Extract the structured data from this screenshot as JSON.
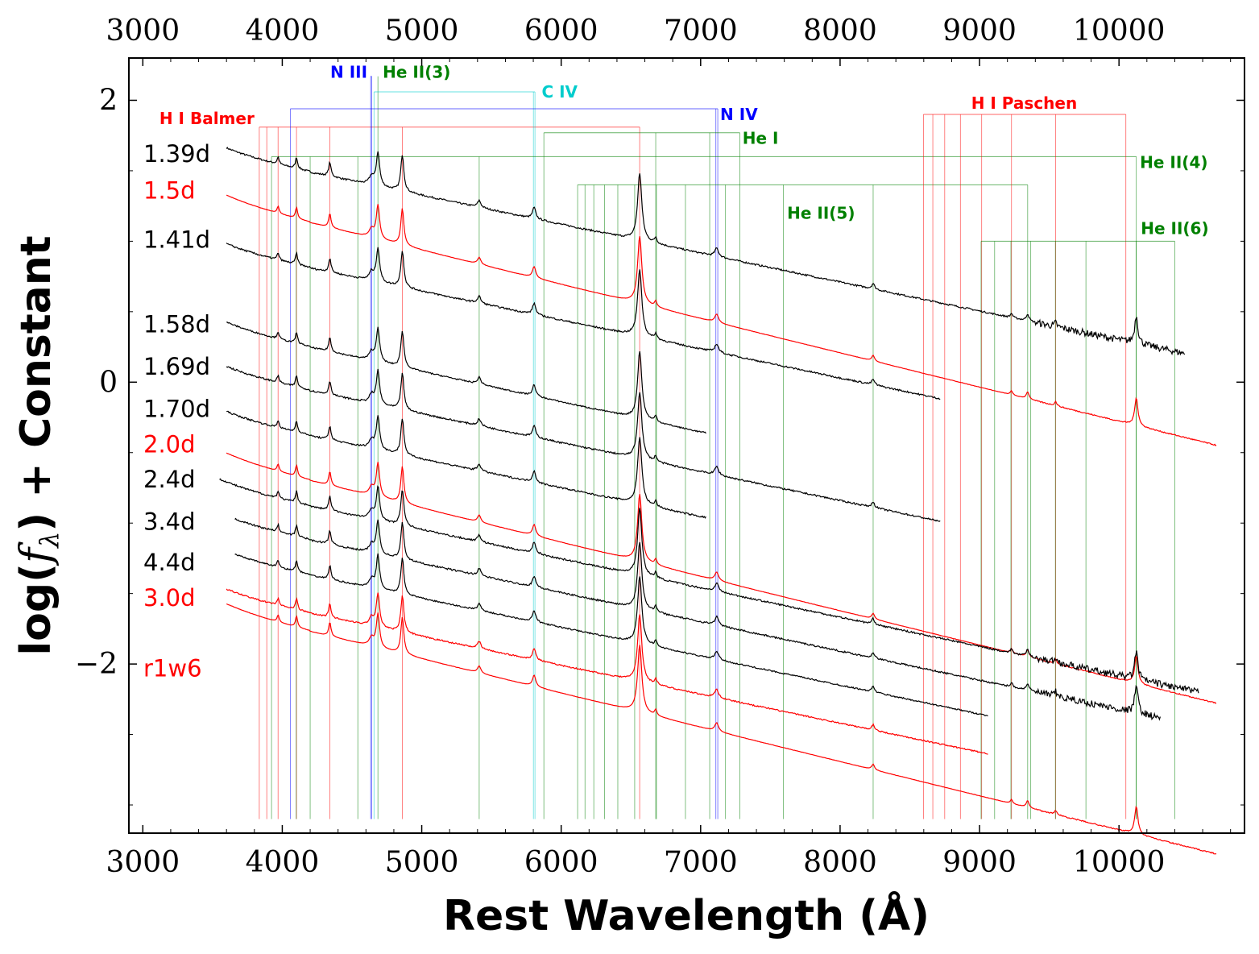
{
  "chart_data": {
    "type": "line",
    "title": "",
    "xlabel": "Rest Wavelength (Å)",
    "ylabel_prefix": "log(",
    "ylabel_symbol": "f",
    "ylabel_subscript": "λ",
    "ylabel_suffix": ") + Constant",
    "xlim": [
      2900,
      10900
    ],
    "ylim": [
      -3.2,
      2.3
    ],
    "xticks": [
      3000,
      4000,
      5000,
      6000,
      7000,
      8000,
      9000,
      10000
    ],
    "yticks": [
      -2,
      0,
      2
    ],
    "ytick_labels": [
      "−2",
      "0",
      "2"
    ],
    "grid": false,
    "colors": {
      "black": "#000000",
      "red": "#ff0000",
      "h": "#ff0000",
      "heI": "#008000",
      "heII": "#008000",
      "nIII": "#0000ff",
      "nIV": "#0000ff",
      "cIV": "#00cccc"
    },
    "series": [
      {
        "name": "1.39d",
        "color": "#000000",
        "x_range": [
          3600,
          10470
        ],
        "y_at_4000": 1.53,
        "slope_per_1000A": -0.205,
        "noise": 0.006
      },
      {
        "name": "1.5d",
        "color": "#ff0000",
        "x_range": [
          3600,
          10700
        ],
        "y_at_4000": 1.18,
        "slope_per_1000A": -0.243,
        "noise": 0.001
      },
      {
        "name": "1.41d",
        "color": "#000000",
        "x_range": [
          3600,
          8720
        ],
        "y_at_4000": 0.85,
        "slope_per_1000A": -0.205,
        "noise": 0.006
      },
      {
        "name": "1.58d",
        "color": "#000000",
        "x_range": [
          3600,
          7040
        ],
        "y_at_4000": 0.29,
        "slope_per_1000A": -0.215,
        "noise": 0.005
      },
      {
        "name": "1.69d",
        "color": "#000000",
        "x_range": [
          3600,
          8720
        ],
        "y_at_4000": -0.02,
        "slope_per_1000A": -0.205,
        "noise": 0.006
      },
      {
        "name": "1.70d",
        "color": "#000000",
        "x_range": [
          3600,
          7040
        ],
        "y_at_4000": -0.34,
        "slope_per_1000A": -0.205,
        "noise": 0.006
      },
      {
        "name": "2.0d",
        "color": "#ff0000",
        "x_range": [
          3600,
          10700
        ],
        "y_at_4000": -0.65,
        "slope_per_1000A": -0.243,
        "noise": 0.001
      },
      {
        "name": "2.4d",
        "color": "#000000",
        "x_range": [
          3550,
          10570
        ],
        "y_at_4000": -0.84,
        "slope_per_1000A": -0.207,
        "noise": 0.006
      },
      {
        "name": "3.4d",
        "color": "#000000",
        "x_range": [
          3660,
          10300
        ],
        "y_at_4000": -1.08,
        "slope_per_1000A": -0.207,
        "noise": 0.006
      },
      {
        "name": "4.4d",
        "color": "#000000",
        "x_range": [
          3660,
          9060
        ],
        "y_at_4000": -1.33,
        "slope_per_1000A": -0.205,
        "noise": 0.005
      },
      {
        "name": "3.0d",
        "color": "#ff0000",
        "x_range": [
          3600,
          9060
        ],
        "y_at_4000": -1.6,
        "slope_per_1000A": -0.205,
        "noise": 0.005
      },
      {
        "name": "r1w6",
        "color": "#ff0000",
        "x_range": [
          3600,
          10700
        ],
        "y_at_4000": -1.72,
        "slope_per_1000A": -0.243,
        "noise": 0.001
      }
    ],
    "spectrum_labels": [
      {
        "text": "1.39d",
        "color": "#000000",
        "y": 1.62
      },
      {
        "text": "1.5d",
        "color": "#ff0000",
        "y": 1.36
      },
      {
        "text": "1.41d",
        "color": "#000000",
        "y": 1.01
      },
      {
        "text": "1.58d",
        "color": "#000000",
        "y": 0.41
      },
      {
        "text": "1.69d",
        "color": "#000000",
        "y": 0.11
      },
      {
        "text": "1.70d",
        "color": "#000000",
        "y": -0.19
      },
      {
        "text": "2.0d",
        "color": "#ff0000",
        "y": -0.44
      },
      {
        "text": "2.4d",
        "color": "#000000",
        "y": -0.69
      },
      {
        "text": "3.4d",
        "color": "#000000",
        "y": -0.99
      },
      {
        "text": "4.4d",
        "color": "#000000",
        "y": -1.28
      },
      {
        "text": "3.0d",
        "color": "#ff0000",
        "y": -1.53
      },
      {
        "text": "r1w6",
        "color": "#ff0000",
        "y": -2.03
      }
    ],
    "line_groups": [
      {
        "label": "H I Balmer",
        "color": "#ff0000",
        "lines": [
          3835,
          3889,
          3970,
          4102,
          4341,
          4861,
          6563
        ],
        "bracket_y": 1.81,
        "label_x": 3800,
        "label_y": 1.87,
        "anchor": "end"
      },
      {
        "label": "N III",
        "color": "#0000ff",
        "lines": [
          4634,
          4641
        ],
        "bracket_y": 2.17,
        "label_x": 4610,
        "label_y": 2.2,
        "anchor": "end"
      },
      {
        "label": "He II(3)",
        "color": "#008000",
        "lines": [
          4686
        ],
        "bracket_y": 2.17,
        "label_x": 4720,
        "label_y": 2.2,
        "anchor": "start"
      },
      {
        "label": "C IV",
        "color": "#00cccc",
        "lines": [
          4658,
          5801,
          5812
        ],
        "bracket_y": 2.06,
        "label_x": 5860,
        "label_y": 2.06,
        "anchor": "start"
      },
      {
        "label": "N IV",
        "color": "#0000ff",
        "lines": [
          4058,
          7109,
          7123
        ],
        "bracket_y": 1.94,
        "label_x": 7140,
        "label_y": 1.9,
        "anchor": "start"
      },
      {
        "label": "He I",
        "color": "#008000",
        "lines": [
          5876,
          6678,
          7065,
          7281
        ],
        "bracket_y": 1.77,
        "label_x": 7300,
        "label_y": 1.73,
        "anchor": "start"
      },
      {
        "label": "He II(4)",
        "color": "#008000",
        "lines": [
          3923,
          4100,
          4200,
          4542,
          5412,
          10124
        ],
        "bracket_y": 1.6,
        "label_x": 10150,
        "label_y": 1.56,
        "anchor": "start"
      },
      {
        "label": "He II(5)",
        "color": "#008000",
        "lines": [
          6118,
          6171,
          6234,
          6311,
          6406,
          6527,
          6683,
          6891,
          7178,
          7593,
          8237,
          9345
        ],
        "bracket_y": 1.4,
        "label_x": 7620,
        "label_y": 1.2,
        "anchor": "start"
      },
      {
        "label": "H I Paschen",
        "color": "#ff0000",
        "lines": [
          8598,
          8665,
          8750,
          8863,
          9015,
          9229,
          9546,
          10049
        ],
        "bracket_y": 1.9,
        "label_x": 9320,
        "label_y": 1.98,
        "anchor": "middle"
      },
      {
        "label": "He II(6)",
        "color": "#008000",
        "lines": [
          9011,
          9108,
          9225,
          9367,
          9544,
          9763,
          10123,
          10400
        ],
        "bracket_y": 1.0,
        "label_x": 10400,
        "label_y": 1.09,
        "anchor": "middle"
      }
    ],
    "emission_features": [
      {
        "center": 3970,
        "width": 9,
        "strength": 0.05
      },
      {
        "center": 4102,
        "width": 9,
        "strength": 0.08
      },
      {
        "center": 4341,
        "width": 10,
        "strength": 0.1
      },
      {
        "center": 4640,
        "width": 20,
        "strength": 0.06
      },
      {
        "center": 4686,
        "width": 14,
        "strength": 0.24
      },
      {
        "center": 4861,
        "width": 13,
        "strength": 0.26
      },
      {
        "center": 5412,
        "width": 14,
        "strength": 0.05
      },
      {
        "center": 5806,
        "width": 14,
        "strength": 0.08
      },
      {
        "center": 6563,
        "width": 18,
        "strength": 0.48
      },
      {
        "center": 6678,
        "width": 10,
        "strength": 0.04
      },
      {
        "center": 7115,
        "width": 16,
        "strength": 0.06
      },
      {
        "center": 8237,
        "width": 12,
        "strength": 0.04
      },
      {
        "center": 9229,
        "width": 10,
        "strength": 0.03
      },
      {
        "center": 9345,
        "width": 12,
        "strength": 0.05
      },
      {
        "center": 9546,
        "width": 10,
        "strength": 0.03
      },
      {
        "center": 10124,
        "width": 14,
        "strength": 0.2
      }
    ]
  }
}
